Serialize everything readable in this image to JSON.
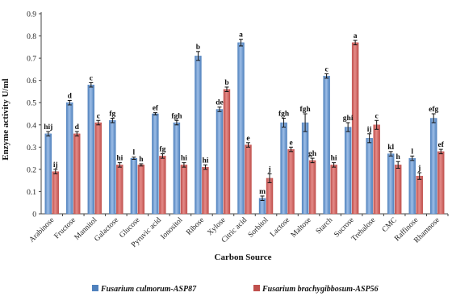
{
  "chart_data": {
    "type": "bar",
    "title": "",
    "xlabel": "Carbon Source",
    "ylabel": "Enzyme activity U/ml",
    "ylim": [
      0,
      0.9
    ],
    "yticks": [
      "0",
      "0.1",
      "0.2",
      "0.3",
      "0.4",
      "0.5",
      "0.6",
      "0.7",
      "0.8",
      "0.9"
    ],
    "grid": false,
    "legend_position": "bottom",
    "categories": [
      "Arabinose",
      "Fructose",
      "Mannitol",
      "Galactose",
      "Glucose",
      "Pyruvic acid",
      "Ionositol",
      "Ribose",
      "Xylose",
      "Citric acid",
      "Sorbitol",
      "Lactose",
      "Maltose",
      "Starch",
      "Sucrose",
      "Trehalose",
      "CMC",
      "Raffinose",
      "Rhamnose"
    ],
    "series": [
      {
        "name": "Fusarium culmorum-ASP87",
        "color": "#4f81bd",
        "values": [
          0.36,
          0.5,
          0.58,
          0.42,
          0.25,
          0.45,
          0.41,
          0.71,
          0.47,
          0.77,
          0.07,
          0.41,
          0.41,
          0.62,
          0.39,
          0.34,
          0.27,
          0.25,
          0.43
        ],
        "errors": [
          0.01,
          0.01,
          0.01,
          0.01,
          0.005,
          0.005,
          0.01,
          0.02,
          0.01,
          0.015,
          0.01,
          0.02,
          0.04,
          0.01,
          0.02,
          0.02,
          0.01,
          0.01,
          0.02
        ],
        "labels": [
          "hij",
          "d",
          "c",
          "fg",
          "l",
          "ef",
          "fgh",
          "b",
          "de",
          "a",
          "m",
          "fgh",
          "fgh",
          "c",
          "ghi",
          "ij",
          "kl",
          "l",
          "efg"
        ]
      },
      {
        "name": "Fusarium brachygibbosum-ASP56",
        "color": "#c0504d",
        "values": [
          0.19,
          0.36,
          0.41,
          0.22,
          0.22,
          0.26,
          0.22,
          0.21,
          0.56,
          0.31,
          0.16,
          0.29,
          0.24,
          0.22,
          0.77,
          0.4,
          0.22,
          0.17,
          0.28
        ],
        "errors": [
          0.01,
          0.01,
          0.01,
          0.01,
          0.005,
          0.01,
          0.01,
          0.01,
          0.01,
          0.01,
          0.02,
          0.01,
          0.01,
          0.01,
          0.01,
          0.02,
          0.015,
          0.015,
          0.01
        ],
        "labels": [
          "ij",
          "d",
          "c",
          "hi",
          "h",
          "fg",
          "hi",
          "hi",
          "b",
          "e",
          "j",
          "e",
          "gh",
          "hi",
          "a",
          "c",
          "h",
          "j",
          "ef"
        ]
      }
    ]
  }
}
